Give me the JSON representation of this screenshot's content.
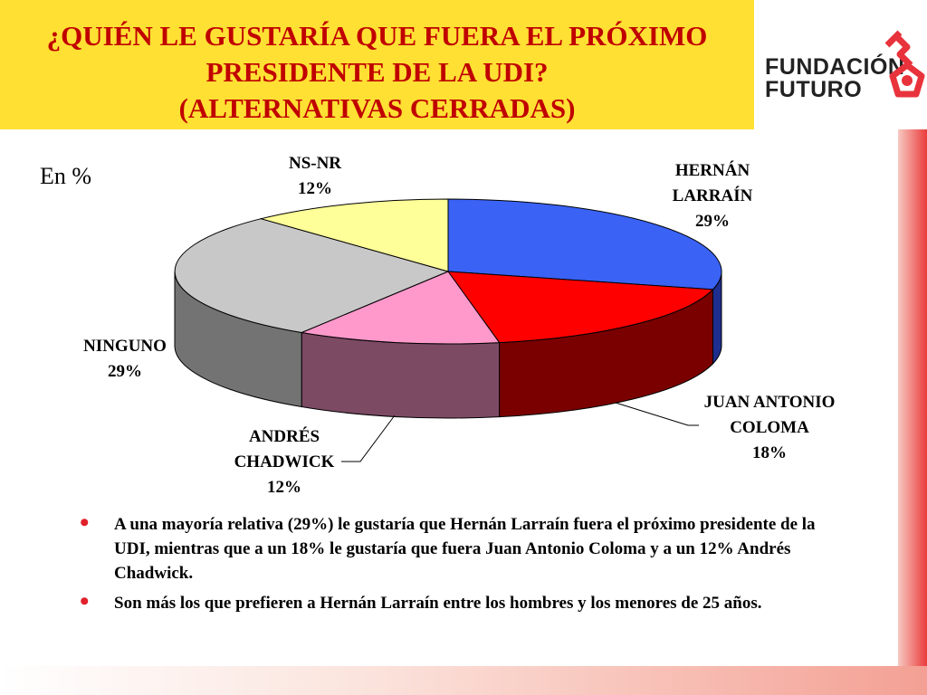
{
  "title": {
    "line1": "¿QUIÉN LE GUSTARÍA QUE FUERA EL PRÓXIMO",
    "line2": "PRESIDENTE DE LA UDI?",
    "line3": "(ALTERNATIVAS CERRADAS)"
  },
  "logo": {
    "line1": "FUNDACIÓN",
    "line2": "FUTURO",
    "icon": "key-icon"
  },
  "unit_label": "En %",
  "chart_data": {
    "type": "pie",
    "unit": "%",
    "slices": [
      {
        "label": "HERNÁN LARRAÍN",
        "value": 29,
        "value_label": "29%",
        "color": "#3A62F5",
        "side_color": "#1E2E8E"
      },
      {
        "label": "JUAN ANTONIO COLOMA",
        "value": 18,
        "value_label": "18%",
        "color": "#FF0000",
        "side_color": "#7A0000"
      },
      {
        "label": "ANDRÉS CHADWICK",
        "value": 12,
        "value_label": "12%",
        "color": "#FF99CC",
        "side_color": "#7D4A64"
      },
      {
        "label": "NINGUNO",
        "value": 29,
        "value_label": "29%",
        "color": "#C8C8C8",
        "side_color": "#737373"
      },
      {
        "label": "NS-NR",
        "value": 12,
        "value_label": "12%",
        "color": "#FFFF99",
        "side_color": "#8A8A52"
      }
    ]
  },
  "labels": {
    "larrain_l1": "HERNÁN",
    "larrain_l2": "LARRAÍN",
    "larrain_pct": "29%",
    "coloma_l1": "JUAN ANTONIO",
    "coloma_l2": "COLOMA",
    "coloma_pct": "18%",
    "chadwick_l1": "ANDRÉS",
    "chadwick_l2": "CHADWICK",
    "chadwick_pct": "12%",
    "ninguno_l1": "NINGUNO",
    "ninguno_pct": "29%",
    "nsnr_l1": "NS-NR",
    "nsnr_pct": "12%"
  },
  "bullets": [
    "A una mayoría relativa (29%) le gustaría que Hernán Larraín fuera el próximo presidente de la UDI, mientras que a un 18% le gustaría que fuera Juan Antonio Coloma y a un 12% Andrés Chadwick.",
    "Son más los que prefieren a Hernán Larraín entre los hombres y los menores de 25 años."
  ],
  "colors": {
    "title_bg": "#FFE033",
    "title_text": "#C00000",
    "bullet": "#E0202A",
    "accent_band": "#EA3B3B"
  }
}
